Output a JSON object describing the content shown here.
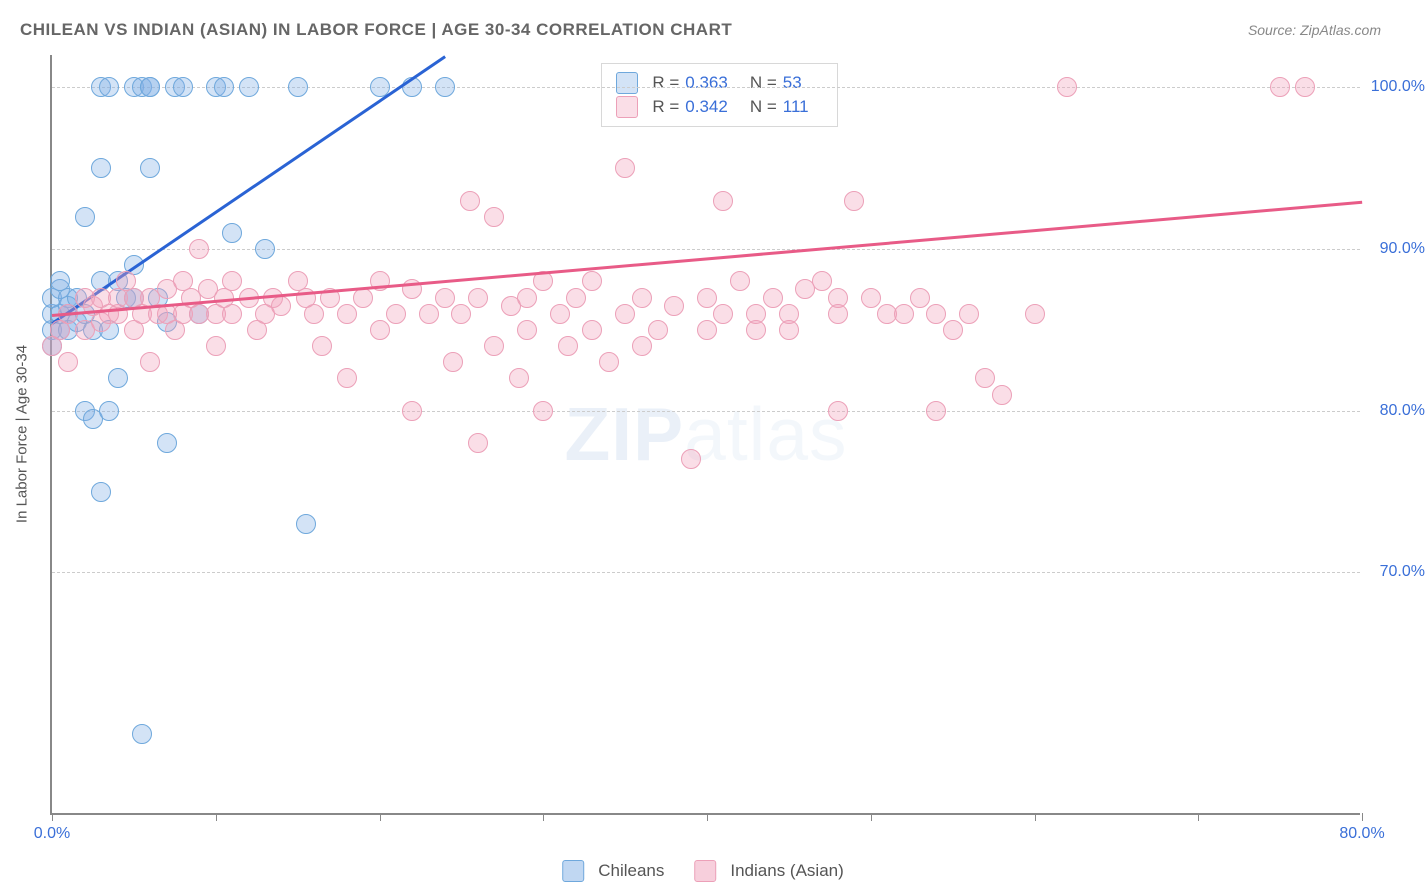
{
  "title": "CHILEAN VS INDIAN (ASIAN) IN LABOR FORCE | AGE 30-34 CORRELATION CHART",
  "source": "Source: ZipAtlas.com",
  "watermark": {
    "part1": "ZIP",
    "part2": "atlas"
  },
  "chart": {
    "type": "scatter",
    "y_axis_title": "In Labor Force | Age 30-34",
    "xlim": [
      0,
      80
    ],
    "ylim": [
      55,
      102
    ],
    "y_ticks": [
      70,
      80,
      90,
      100
    ],
    "y_tick_labels": [
      "70.0%",
      "80.0%",
      "90.0%",
      "100.0%"
    ],
    "x_ticks": [
      0,
      10,
      20,
      30,
      40,
      50,
      60,
      70,
      80
    ],
    "x_tick_labels": {
      "0": "0.0%",
      "80": "80.0%"
    },
    "grid_color": "#cccccc",
    "axis_color": "#888888",
    "series": [
      {
        "name": "Chileans",
        "color_fill": "rgba(130,176,230,0.35)",
        "color_stroke": "#6fa8dc",
        "trend_color": "#2a63d4",
        "R": "0.363",
        "N": "53",
        "trend": {
          "x1": 0,
          "y1": 85.5,
          "x2": 24,
          "y2": 102
        },
        "points": [
          [
            0,
            85
          ],
          [
            0,
            86
          ],
          [
            0,
            87
          ],
          [
            0,
            84
          ],
          [
            0.5,
            85
          ],
          [
            0.5,
            86
          ],
          [
            0.5,
            87.5
          ],
          [
            0.5,
            88
          ],
          [
            1,
            85
          ],
          [
            1,
            86
          ],
          [
            1,
            87
          ],
          [
            1,
            86.5
          ],
          [
            1.5,
            85.5
          ],
          [
            1.5,
            87
          ],
          [
            2,
            92
          ],
          [
            2,
            86
          ],
          [
            2,
            80
          ],
          [
            2.5,
            85
          ],
          [
            2.5,
            79.5
          ],
          [
            3,
            100
          ],
          [
            3,
            95
          ],
          [
            3,
            88
          ],
          [
            3,
            75
          ],
          [
            3.5,
            100
          ],
          [
            3.5,
            85
          ],
          [
            3.5,
            80
          ],
          [
            4,
            88
          ],
          [
            4,
            82
          ],
          [
            4.5,
            87
          ],
          [
            5,
            100
          ],
          [
            5,
            87
          ],
          [
            5,
            89
          ],
          [
            5.5,
            100
          ],
          [
            6,
            100
          ],
          [
            6,
            95
          ],
          [
            6.5,
            87
          ],
          [
            7,
            78
          ],
          [
            7,
            85.5
          ],
          [
            7.5,
            100
          ],
          [
            8,
            100
          ],
          [
            9,
            86
          ],
          [
            10,
            100
          ],
          [
            10.5,
            100
          ],
          [
            11,
            91
          ],
          [
            12,
            100
          ],
          [
            13,
            90
          ],
          [
            15,
            100
          ],
          [
            15.5,
            73
          ],
          [
            20,
            100
          ],
          [
            22,
            100
          ],
          [
            24,
            100
          ],
          [
            5.5,
            60
          ],
          [
            6,
            100
          ]
        ]
      },
      {
        "name": "Indians (Asian)",
        "color_fill": "rgba(240,160,185,0.35)",
        "color_stroke": "#eca0b8",
        "trend_color": "#e85b87",
        "R": "0.342",
        "N": "111",
        "trend": {
          "x1": 0,
          "y1": 86,
          "x2": 80,
          "y2": 93
        },
        "points": [
          [
            0,
            84
          ],
          [
            0.5,
            85
          ],
          [
            1,
            86
          ],
          [
            1,
            83
          ],
          [
            2,
            87
          ],
          [
            2,
            85
          ],
          [
            2.5,
            86.5
          ],
          [
            3,
            87
          ],
          [
            3,
            85.5
          ],
          [
            3.5,
            86
          ],
          [
            4,
            87
          ],
          [
            4,
            86
          ],
          [
            4.5,
            88
          ],
          [
            5,
            87
          ],
          [
            5,
            85
          ],
          [
            5.5,
            86
          ],
          [
            6,
            87
          ],
          [
            6,
            83
          ],
          [
            6.5,
            86
          ],
          [
            7,
            87.5
          ],
          [
            7,
            86
          ],
          [
            7.5,
            85
          ],
          [
            8,
            88
          ],
          [
            8,
            86
          ],
          [
            8.5,
            87
          ],
          [
            9,
            86
          ],
          [
            9,
            90
          ],
          [
            9.5,
            87.5
          ],
          [
            10,
            86
          ],
          [
            10,
            84
          ],
          [
            10.5,
            87
          ],
          [
            11,
            88
          ],
          [
            11,
            86
          ],
          [
            12,
            87
          ],
          [
            12.5,
            85
          ],
          [
            13,
            86
          ],
          [
            13.5,
            87
          ],
          [
            14,
            86.5
          ],
          [
            15,
            88
          ],
          [
            15.5,
            87
          ],
          [
            16,
            86
          ],
          [
            16.5,
            84
          ],
          [
            17,
            87
          ],
          [
            18,
            86
          ],
          [
            18,
            82
          ],
          [
            19,
            87
          ],
          [
            20,
            88
          ],
          [
            20,
            85
          ],
          [
            21,
            86
          ],
          [
            22,
            87.5
          ],
          [
            22,
            80
          ],
          [
            23,
            86
          ],
          [
            24,
            87
          ],
          [
            24.5,
            83
          ],
          [
            25,
            86
          ],
          [
            25.5,
            93
          ],
          [
            26,
            87
          ],
          [
            26,
            78
          ],
          [
            27,
            84
          ],
          [
            27,
            92
          ],
          [
            28,
            86.5
          ],
          [
            28.5,
            82
          ],
          [
            29,
            87
          ],
          [
            29,
            85
          ],
          [
            30,
            88
          ],
          [
            30,
            80
          ],
          [
            31,
            86
          ],
          [
            31.5,
            84
          ],
          [
            32,
            87
          ],
          [
            33,
            85
          ],
          [
            33,
            88
          ],
          [
            34,
            83
          ],
          [
            35,
            86
          ],
          [
            35,
            95
          ],
          [
            36,
            87
          ],
          [
            36,
            84
          ],
          [
            37,
            85
          ],
          [
            38,
            86.5
          ],
          [
            39,
            77
          ],
          [
            40,
            87
          ],
          [
            40,
            85
          ],
          [
            41,
            86
          ],
          [
            41,
            93
          ],
          [
            42,
            88
          ],
          [
            43,
            85
          ],
          [
            43,
            86
          ],
          [
            44,
            87
          ],
          [
            45,
            86
          ],
          [
            45,
            85
          ],
          [
            46,
            87.5
          ],
          [
            47,
            88
          ],
          [
            48,
            86
          ],
          [
            48,
            87
          ],
          [
            48,
            80
          ],
          [
            49,
            93
          ],
          [
            50,
            87
          ],
          [
            51,
            86
          ],
          [
            52,
            86
          ],
          [
            53,
            87
          ],
          [
            54,
            80
          ],
          [
            54,
            86
          ],
          [
            55,
            85
          ],
          [
            56,
            86
          ],
          [
            57,
            82
          ],
          [
            58,
            81
          ],
          [
            60,
            86
          ],
          [
            62,
            100
          ],
          [
            75,
            100
          ],
          [
            76.5,
            100
          ]
        ]
      }
    ]
  },
  "bottom_legend": [
    {
      "label": "Chileans",
      "fill": "rgba(130,176,230,0.5)",
      "stroke": "#6fa8dc"
    },
    {
      "label": "Indians (Asian)",
      "fill": "rgba(240,160,185,0.5)",
      "stroke": "#eca0b8"
    }
  ]
}
